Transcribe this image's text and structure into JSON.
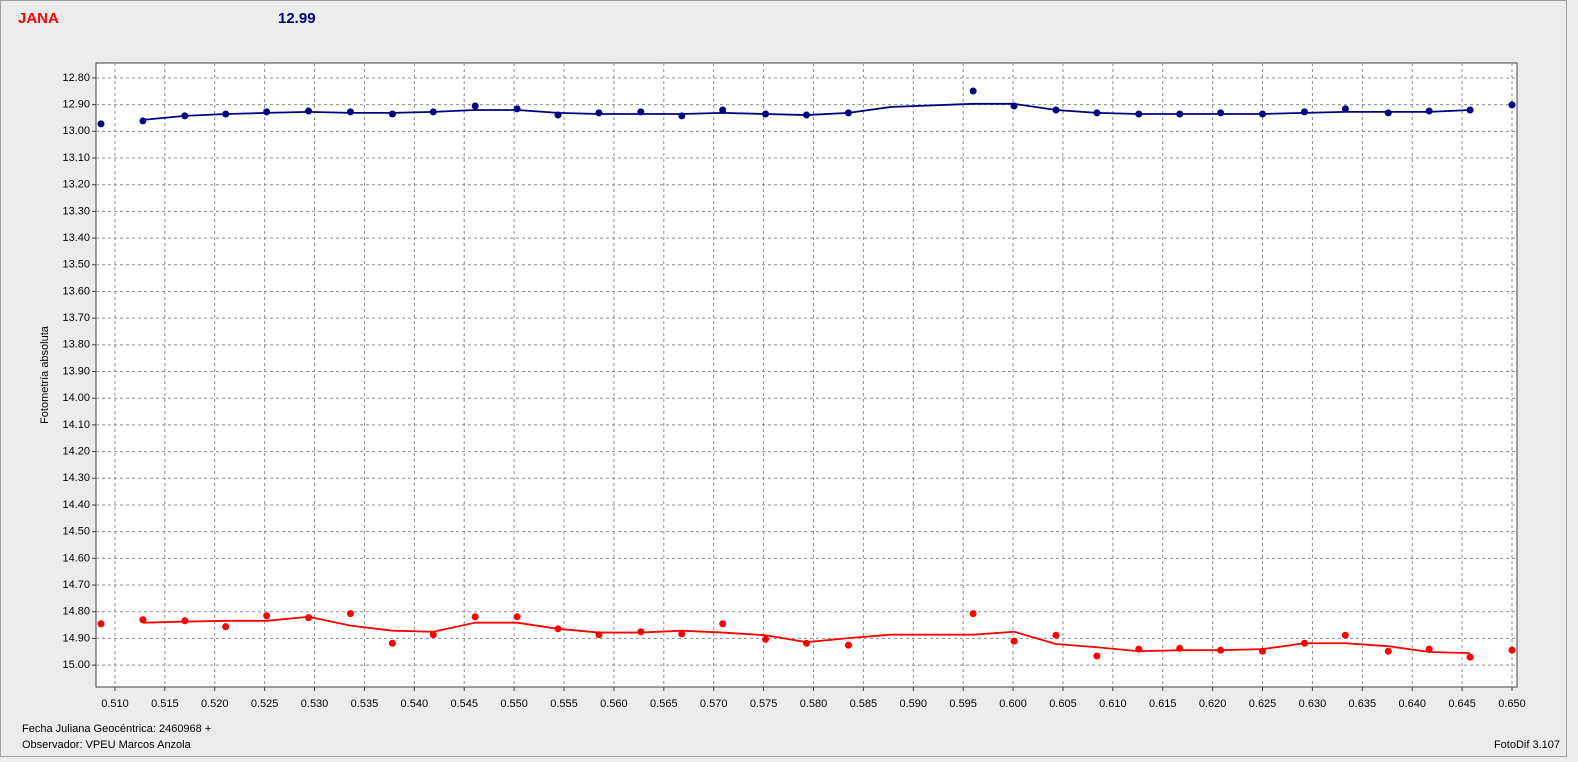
{
  "header": {
    "star": "JANA",
    "magnitude": "12.99"
  },
  "footer": {
    "date": "Fecha Juliana Geocéntrica: 2460968 +",
    "observer": "Observador: VPEU Marcos Anzola",
    "software": "FotoDif 3.107"
  },
  "chart_data": {
    "type": "scatter",
    "ylabel": "Fotometría absoluta",
    "xlim": [
      0.5081,
      0.6505
    ],
    "ylim": [
      12.744,
      15.082
    ],
    "y_reversed": true,
    "grid": true,
    "xticks": [
      {
        "value": 0.51,
        "label": "0.510"
      },
      {
        "value": 0.515,
        "label": "0.515"
      },
      {
        "value": 0.52,
        "label": "0.520"
      },
      {
        "value": 0.525,
        "label": "0.525"
      },
      {
        "value": 0.53,
        "label": "0.530"
      },
      {
        "value": 0.535,
        "label": "0.535"
      },
      {
        "value": 0.54,
        "label": "0.540"
      },
      {
        "value": 0.545,
        "label": "0.545"
      },
      {
        "value": 0.55,
        "label": "0.550"
      },
      {
        "value": 0.555,
        "label": "0.555"
      },
      {
        "value": 0.56,
        "label": "0.560"
      },
      {
        "value": 0.565,
        "label": "0.565"
      },
      {
        "value": 0.57,
        "label": "0.570"
      },
      {
        "value": 0.575,
        "label": "0.575"
      },
      {
        "value": 0.58,
        "label": "0.580"
      },
      {
        "value": 0.585,
        "label": "0.585"
      },
      {
        "value": 0.59,
        "label": "0.590"
      },
      {
        "value": 0.595,
        "label": "0.595"
      },
      {
        "value": 0.6,
        "label": "0.600"
      },
      {
        "value": 0.605,
        "label": "0.605"
      },
      {
        "value": 0.61,
        "label": "0.610"
      },
      {
        "value": 0.615,
        "label": "0.615"
      },
      {
        "value": 0.62,
        "label": "0.620"
      },
      {
        "value": 0.625,
        "label": "0.625"
      },
      {
        "value": 0.63,
        "label": "0.630"
      },
      {
        "value": 0.635,
        "label": "0.635"
      },
      {
        "value": 0.64,
        "label": "0.640"
      },
      {
        "value": 0.645,
        "label": "0.645"
      },
      {
        "value": 0.65,
        "label": "0.650"
      }
    ],
    "yticks": [
      {
        "value": 12.8,
        "label": "12.80"
      },
      {
        "value": 12.9,
        "label": "12.90"
      },
      {
        "value": 13.0,
        "label": "13.00"
      },
      {
        "value": 13.1,
        "label": "13.10"
      },
      {
        "value": 13.2,
        "label": "13.20"
      },
      {
        "value": 13.3,
        "label": "13.30"
      },
      {
        "value": 13.4,
        "label": "13.40"
      },
      {
        "value": 13.5,
        "label": "13.50"
      },
      {
        "value": 13.6,
        "label": "13.60"
      },
      {
        "value": 13.7,
        "label": "13.70"
      },
      {
        "value": 13.8,
        "label": "13.80"
      },
      {
        "value": 13.9,
        "label": "13.90"
      },
      {
        "value": 14.0,
        "label": "14.00"
      },
      {
        "value": 14.1,
        "label": "14.10"
      },
      {
        "value": 14.2,
        "label": "14.20"
      },
      {
        "value": 14.3,
        "label": "14.30"
      },
      {
        "value": 14.4,
        "label": "14.40"
      },
      {
        "value": 14.5,
        "label": "14.50"
      },
      {
        "value": 14.6,
        "label": "14.60"
      },
      {
        "value": 14.7,
        "label": "14.70"
      },
      {
        "value": 14.8,
        "label": "14.80"
      },
      {
        "value": 14.9,
        "label": "14.90"
      },
      {
        "value": 15.0,
        "label": "15.00"
      }
    ],
    "series": [
      {
        "mode": "markers",
        "color": "#000080",
        "x": [
          0.5086,
          0.5128,
          0.517,
          0.5211,
          0.5252,
          0.5294,
          0.5336,
          0.5378,
          0.5419,
          0.5461,
          0.5503,
          0.5544,
          0.5585,
          0.5627,
          0.5668,
          0.5709,
          0.5752,
          0.5793,
          0.5835,
          0.596,
          0.6001,
          0.6043,
          0.6084,
          0.6126,
          0.6167,
          0.6208,
          0.625,
          0.6292,
          0.6333,
          0.6376,
          0.6417,
          0.6458,
          0.65
        ],
        "values": [
          12.972,
          12.961,
          12.942,
          12.935,
          12.927,
          12.924,
          12.927,
          12.935,
          12.927,
          12.905,
          12.916,
          12.939,
          12.931,
          12.927,
          12.942,
          12.92,
          12.935,
          12.939,
          12.931,
          12.849,
          12.905,
          12.92,
          12.931,
          12.935,
          12.935,
          12.931,
          12.935,
          12.927,
          12.916,
          12.931,
          12.924,
          12.92,
          12.901
        ]
      },
      {
        "mode": "line",
        "color": "#000080",
        "x": [
          0.5128,
          0.517,
          0.5211,
          0.5252,
          0.5294,
          0.5336,
          0.5378,
          0.5419,
          0.5461,
          0.5503,
          0.5544,
          0.5585,
          0.5627,
          0.5668,
          0.5709,
          0.5752,
          0.5793,
          0.5835,
          0.5877,
          0.596,
          0.6001,
          0.6043,
          0.6084,
          0.6126,
          0.6167,
          0.6208,
          0.625,
          0.6292,
          0.6333,
          0.6376,
          0.6417,
          0.6458
        ],
        "values": [
          12.957,
          12.942,
          12.935,
          12.931,
          12.927,
          12.931,
          12.931,
          12.927,
          12.92,
          12.92,
          12.931,
          12.935,
          12.935,
          12.935,
          12.931,
          12.935,
          12.939,
          12.931,
          12.909,
          12.897,
          12.897,
          12.92,
          12.931,
          12.935,
          12.935,
          12.935,
          12.935,
          12.931,
          12.927,
          12.927,
          12.927,
          12.92
        ]
      },
      {
        "mode": "markers",
        "color": "#ff0000",
        "x": [
          0.5086,
          0.5128,
          0.517,
          0.5211,
          0.5252,
          0.5294,
          0.5336,
          0.5378,
          0.5419,
          0.5461,
          0.5503,
          0.5544,
          0.5585,
          0.5627,
          0.5668,
          0.5709,
          0.5752,
          0.5793,
          0.5835,
          0.596,
          0.6001,
          0.6043,
          0.6084,
          0.6126,
          0.6167,
          0.6208,
          0.625,
          0.6292,
          0.6333,
          0.6376,
          0.6417,
          0.6458,
          0.65
        ],
        "values": [
          14.845,
          14.83,
          14.834,
          14.856,
          14.815,
          14.822,
          14.807,
          14.918,
          14.886,
          14.819,
          14.819,
          14.864,
          14.886,
          14.875,
          14.883,
          14.845,
          14.903,
          14.918,
          14.925,
          14.807,
          14.91,
          14.888,
          14.966,
          14.94,
          14.937,
          14.944,
          14.948,
          14.918,
          14.888,
          14.948,
          14.94,
          14.97,
          14.944
        ]
      },
      {
        "mode": "line",
        "color": "#ff0000",
        "x": [
          0.5128,
          0.517,
          0.5211,
          0.5252,
          0.5294,
          0.5336,
          0.5378,
          0.5419,
          0.5461,
          0.5503,
          0.5544,
          0.5585,
          0.5627,
          0.5668,
          0.5709,
          0.5752,
          0.5793,
          0.5835,
          0.5877,
          0.596,
          0.6001,
          0.6043,
          0.6084,
          0.6126,
          0.6167,
          0.6208,
          0.625,
          0.6292,
          0.6333,
          0.6376,
          0.6417,
          0.6458
        ],
        "values": [
          14.841,
          14.837,
          14.834,
          14.834,
          14.819,
          14.852,
          14.871,
          14.875,
          14.841,
          14.841,
          14.864,
          14.878,
          14.878,
          14.871,
          14.878,
          14.888,
          14.914,
          14.899,
          14.886,
          14.886,
          14.875,
          14.921,
          14.933,
          14.948,
          14.944,
          14.944,
          14.94,
          14.918,
          14.918,
          14.929,
          14.951,
          14.955
        ]
      }
    ]
  }
}
